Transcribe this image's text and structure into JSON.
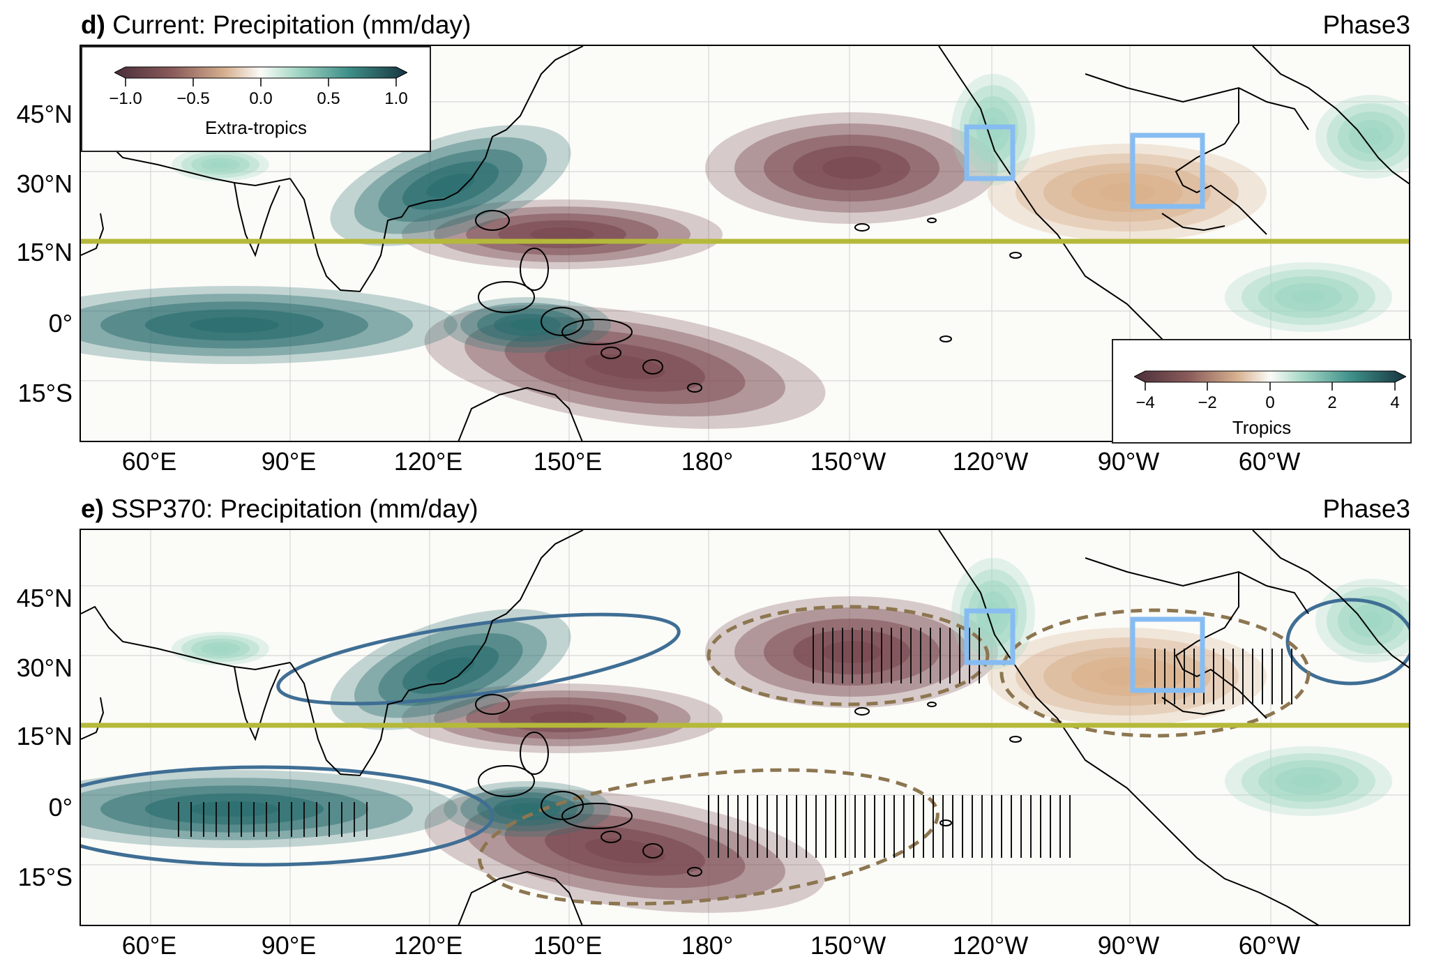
{
  "panels": [
    {
      "letter": "d)",
      "title": "Current: Precipitation (mm/day)",
      "phase": "Phase3",
      "show_contours": false
    },
    {
      "letter": "e)",
      "title": "SSP370: Precipitation (mm/day)",
      "phase": "Phase3",
      "show_contours": true
    }
  ],
  "axes": {
    "lon_ticks": [
      "60°E",
      "90°E",
      "120°E",
      "150°E",
      "180°",
      "150°W",
      "120°W",
      "90°W",
      "60°W"
    ],
    "lat_ticks": [
      "45°N",
      "30°N",
      "15°N",
      "0°",
      "15°S"
    ]
  },
  "colorbars": {
    "extratropics": {
      "label": "Extra-tropics",
      "ticks": [
        "−1.0",
        "−0.5",
        "0.0",
        "0.5",
        "1.0"
      ]
    },
    "tropics": {
      "label": "Tropics",
      "ticks": [
        "−4",
        "−2",
        "0",
        "2",
        "4"
      ]
    }
  },
  "colors": {
    "dry": "#7a4a52",
    "dry_light": "#d9b08c",
    "neutral": "#fbfbf8",
    "wet_light": "#9fd6c4",
    "wet": "#2c6e70",
    "wet_dark": "#1c3f4c",
    "equator_line": "#b5b93a",
    "region_box": "#86bcf2",
    "positive_contour": "#3f6e94",
    "negative_contour": "#8c7650"
  }
}
